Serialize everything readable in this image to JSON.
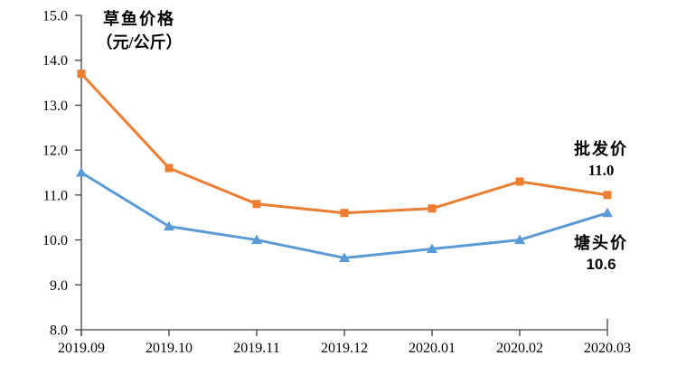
{
  "chart_data": {
    "type": "line",
    "title_line1": "草鱼价格",
    "title_line2": "（元/公斤）",
    "categories": [
      "2019.09",
      "2019.10",
      "2019.11",
      "2019.12",
      "2020.01",
      "2020.02",
      "2020.03"
    ],
    "series": [
      {
        "name": "批发价",
        "values": [
          13.7,
          11.6,
          10.8,
          10.6,
          10.7,
          11.3,
          11.0
        ],
        "color": "#ED7D31",
        "marker": "square",
        "end_label": "11.0"
      },
      {
        "name": "塘头价",
        "values": [
          11.5,
          10.3,
          10.0,
          9.6,
          9.8,
          10.0,
          10.6
        ],
        "color": "#5B9BD5",
        "marker": "triangle",
        "end_label": "10.6"
      }
    ],
    "ylim": [
      8.0,
      15.0
    ],
    "ytick_step": 1.0,
    "ytick_labels": [
      "8.0",
      "9.0",
      "10.0",
      "11.0",
      "12.0",
      "13.0",
      "14.0",
      "15.0"
    ],
    "xlabel": "",
    "ylabel": "草鱼价格（元/公斤）",
    "grid": false,
    "legend_position": "right-inline",
    "axis_color": "#404040",
    "text_color": "#000000"
  }
}
